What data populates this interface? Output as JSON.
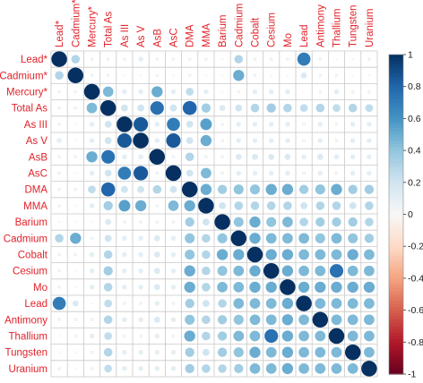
{
  "chart_data": {
    "type": "heatmap",
    "style": "correlation-circles",
    "variables": [
      "Lead*",
      "Cadmium*",
      "Mercury*",
      "Total As",
      "As III",
      "As V",
      "AsB",
      "AsC",
      "DMA",
      "MMA",
      "Barium",
      "Cadmium",
      "Cobalt",
      "Cesium",
      "Mo",
      "Lead",
      "Antimony",
      "Thallium",
      "Tungsten",
      "Uranium"
    ],
    "matrix": [
      [
        1,
        0.3,
        0.05,
        0.05,
        0.05,
        0.1,
        0.05,
        0.05,
        0.05,
        0.05,
        0.02,
        0.3,
        0.05,
        0.05,
        0.05,
        0.7,
        0.05,
        0.02,
        0.02,
        0.05
      ],
      [
        0.3,
        1,
        0.05,
        0.05,
        0.02,
        0.02,
        0.05,
        0.02,
        0.05,
        0.02,
        0.02,
        0.5,
        0.05,
        0.02,
        0.02,
        0.15,
        0.05,
        0.05,
        0.02,
        0.02
      ],
      [
        0.05,
        0.05,
        1,
        0.45,
        0.1,
        0.1,
        0.5,
        0.1,
        0.25,
        0.1,
        0.02,
        0.05,
        0.1,
        0.1,
        0.1,
        0.02,
        0.05,
        0.1,
        0.05,
        0.05
      ],
      [
        0.05,
        0.05,
        0.45,
        1,
        0.2,
        0.2,
        0.75,
        0.2,
        0.8,
        0.35,
        0.15,
        0.2,
        0.3,
        0.35,
        0.3,
        0.25,
        0.3,
        0.25,
        0.3,
        0.25
      ],
      [
        0.05,
        0.02,
        0.1,
        0.2,
        1,
        0.85,
        0.1,
        0.7,
        0.2,
        0.55,
        0.05,
        0.1,
        0.1,
        0.1,
        0.1,
        0.05,
        0.1,
        0.05,
        0.1,
        0.1
      ],
      [
        0.1,
        0.02,
        0.1,
        0.2,
        0.85,
        1,
        0.1,
        0.85,
        0.2,
        0.5,
        0.05,
        0.1,
        0.1,
        0.1,
        0.1,
        0.05,
        0.1,
        0.05,
        0.1,
        0.1
      ],
      [
        0.05,
        0.05,
        0.5,
        0.75,
        0.1,
        0.1,
        1,
        0.05,
        0.3,
        0.05,
        0.05,
        0.15,
        0.15,
        0.15,
        0.15,
        0.1,
        0.15,
        0.1,
        0.1,
        0.1
      ],
      [
        0.05,
        0.02,
        0.1,
        0.2,
        0.7,
        0.85,
        0.05,
        1,
        0.2,
        0.45,
        0.05,
        0.1,
        0.1,
        0.1,
        0.1,
        0.05,
        0.1,
        0.05,
        0.1,
        0.1
      ],
      [
        0.05,
        0.05,
        0.25,
        0.8,
        0.2,
        0.2,
        0.3,
        0.2,
        1,
        0.5,
        0.35,
        0.4,
        0.4,
        0.5,
        0.5,
        0.35,
        0.4,
        0.5,
        0.35,
        0.35
      ],
      [
        0.05,
        0.02,
        0.1,
        0.35,
        0.55,
        0.5,
        0.05,
        0.45,
        0.5,
        1,
        0.2,
        0.3,
        0.3,
        0.3,
        0.3,
        0.2,
        0.3,
        0.3,
        0.2,
        0.3
      ],
      [
        0.02,
        0.02,
        0.02,
        0.15,
        0.05,
        0.05,
        0.05,
        0.05,
        0.35,
        0.2,
        1,
        0.4,
        0.5,
        0.4,
        0.45,
        0.3,
        0.35,
        0.35,
        0.35,
        0.3
      ],
      [
        0.3,
        0.5,
        0.05,
        0.2,
        0.1,
        0.1,
        0.15,
        0.1,
        0.4,
        0.3,
        0.4,
        1,
        0.5,
        0.45,
        0.45,
        0.45,
        0.4,
        0.45,
        0.4,
        0.35
      ],
      [
        0.05,
        0.05,
        0.1,
        0.3,
        0.1,
        0.1,
        0.15,
        0.1,
        0.4,
        0.3,
        0.5,
        0.5,
        1,
        0.5,
        0.5,
        0.45,
        0.45,
        0.45,
        0.5,
        0.45
      ],
      [
        0.05,
        0.02,
        0.1,
        0.35,
        0.1,
        0.1,
        0.15,
        0.1,
        0.5,
        0.3,
        0.4,
        0.45,
        0.5,
        1,
        0.5,
        0.45,
        0.45,
        0.75,
        0.45,
        0.45
      ],
      [
        0.05,
        0.02,
        0.1,
        0.3,
        0.1,
        0.1,
        0.15,
        0.1,
        0.5,
        0.3,
        0.45,
        0.45,
        0.5,
        0.5,
        1,
        0.5,
        0.5,
        0.5,
        0.5,
        0.5
      ],
      [
        0.7,
        0.15,
        0.02,
        0.25,
        0.05,
        0.05,
        0.1,
        0.05,
        0.35,
        0.2,
        0.3,
        0.45,
        0.45,
        0.45,
        0.5,
        1,
        0.45,
        0.45,
        0.45,
        0.45
      ],
      [
        0.05,
        0.05,
        0.05,
        0.3,
        0.1,
        0.1,
        0.15,
        0.1,
        0.4,
        0.3,
        0.35,
        0.4,
        0.45,
        0.45,
        0.5,
        0.45,
        1,
        0.45,
        0.45,
        0.45
      ],
      [
        0.02,
        0.05,
        0.1,
        0.25,
        0.05,
        0.05,
        0.1,
        0.05,
        0.5,
        0.3,
        0.35,
        0.45,
        0.45,
        0.75,
        0.5,
        0.45,
        0.45,
        1,
        0.45,
        0.45
      ],
      [
        0.02,
        0.02,
        0.05,
        0.3,
        0.1,
        0.1,
        0.1,
        0.1,
        0.35,
        0.2,
        0.35,
        0.4,
        0.5,
        0.45,
        0.5,
        0.45,
        0.45,
        0.45,
        1,
        0.45
      ],
      [
        0.05,
        0.02,
        0.05,
        0.25,
        0.1,
        0.1,
        0.1,
        0.1,
        0.35,
        0.3,
        0.3,
        0.35,
        0.45,
        0.45,
        0.5,
        0.45,
        0.45,
        0.45,
        0.45,
        1
      ]
    ],
    "colorbar": {
      "ticks": [
        "1",
        "0.8",
        "0.6",
        "0.4",
        "0.2",
        "0",
        "-0.2",
        "-0.4",
        "-0.6",
        "-0.8",
        "-1"
      ],
      "range": [
        -1,
        1
      ],
      "colors": {
        "neg": "#67001f",
        "mid": "#f7f7f7",
        "pos": "#053061"
      }
    },
    "label_color": "#e0232a",
    "grid": true
  }
}
